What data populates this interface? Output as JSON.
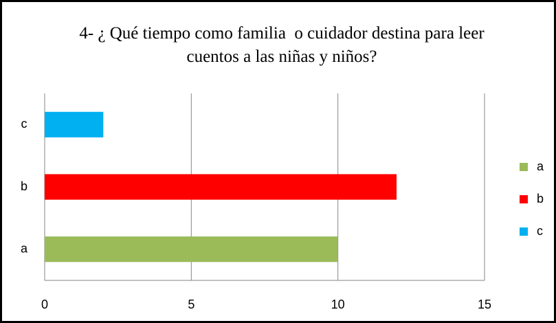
{
  "chart_data": {
    "type": "barh",
    "title": "4- ¿ Qué tiempo como familia  o cuidador destina para leer cuentos a las niñas y niños?",
    "categories": [
      "a",
      "b",
      "c"
    ],
    "values": [
      10,
      12,
      2
    ],
    "colors": [
      "#9bbb59",
      "#ff0000",
      "#00b0f0"
    ],
    "xlim": [
      0,
      15
    ],
    "xticks": [
      0,
      5,
      10,
      15
    ],
    "grid": true,
    "legend": "right"
  }
}
